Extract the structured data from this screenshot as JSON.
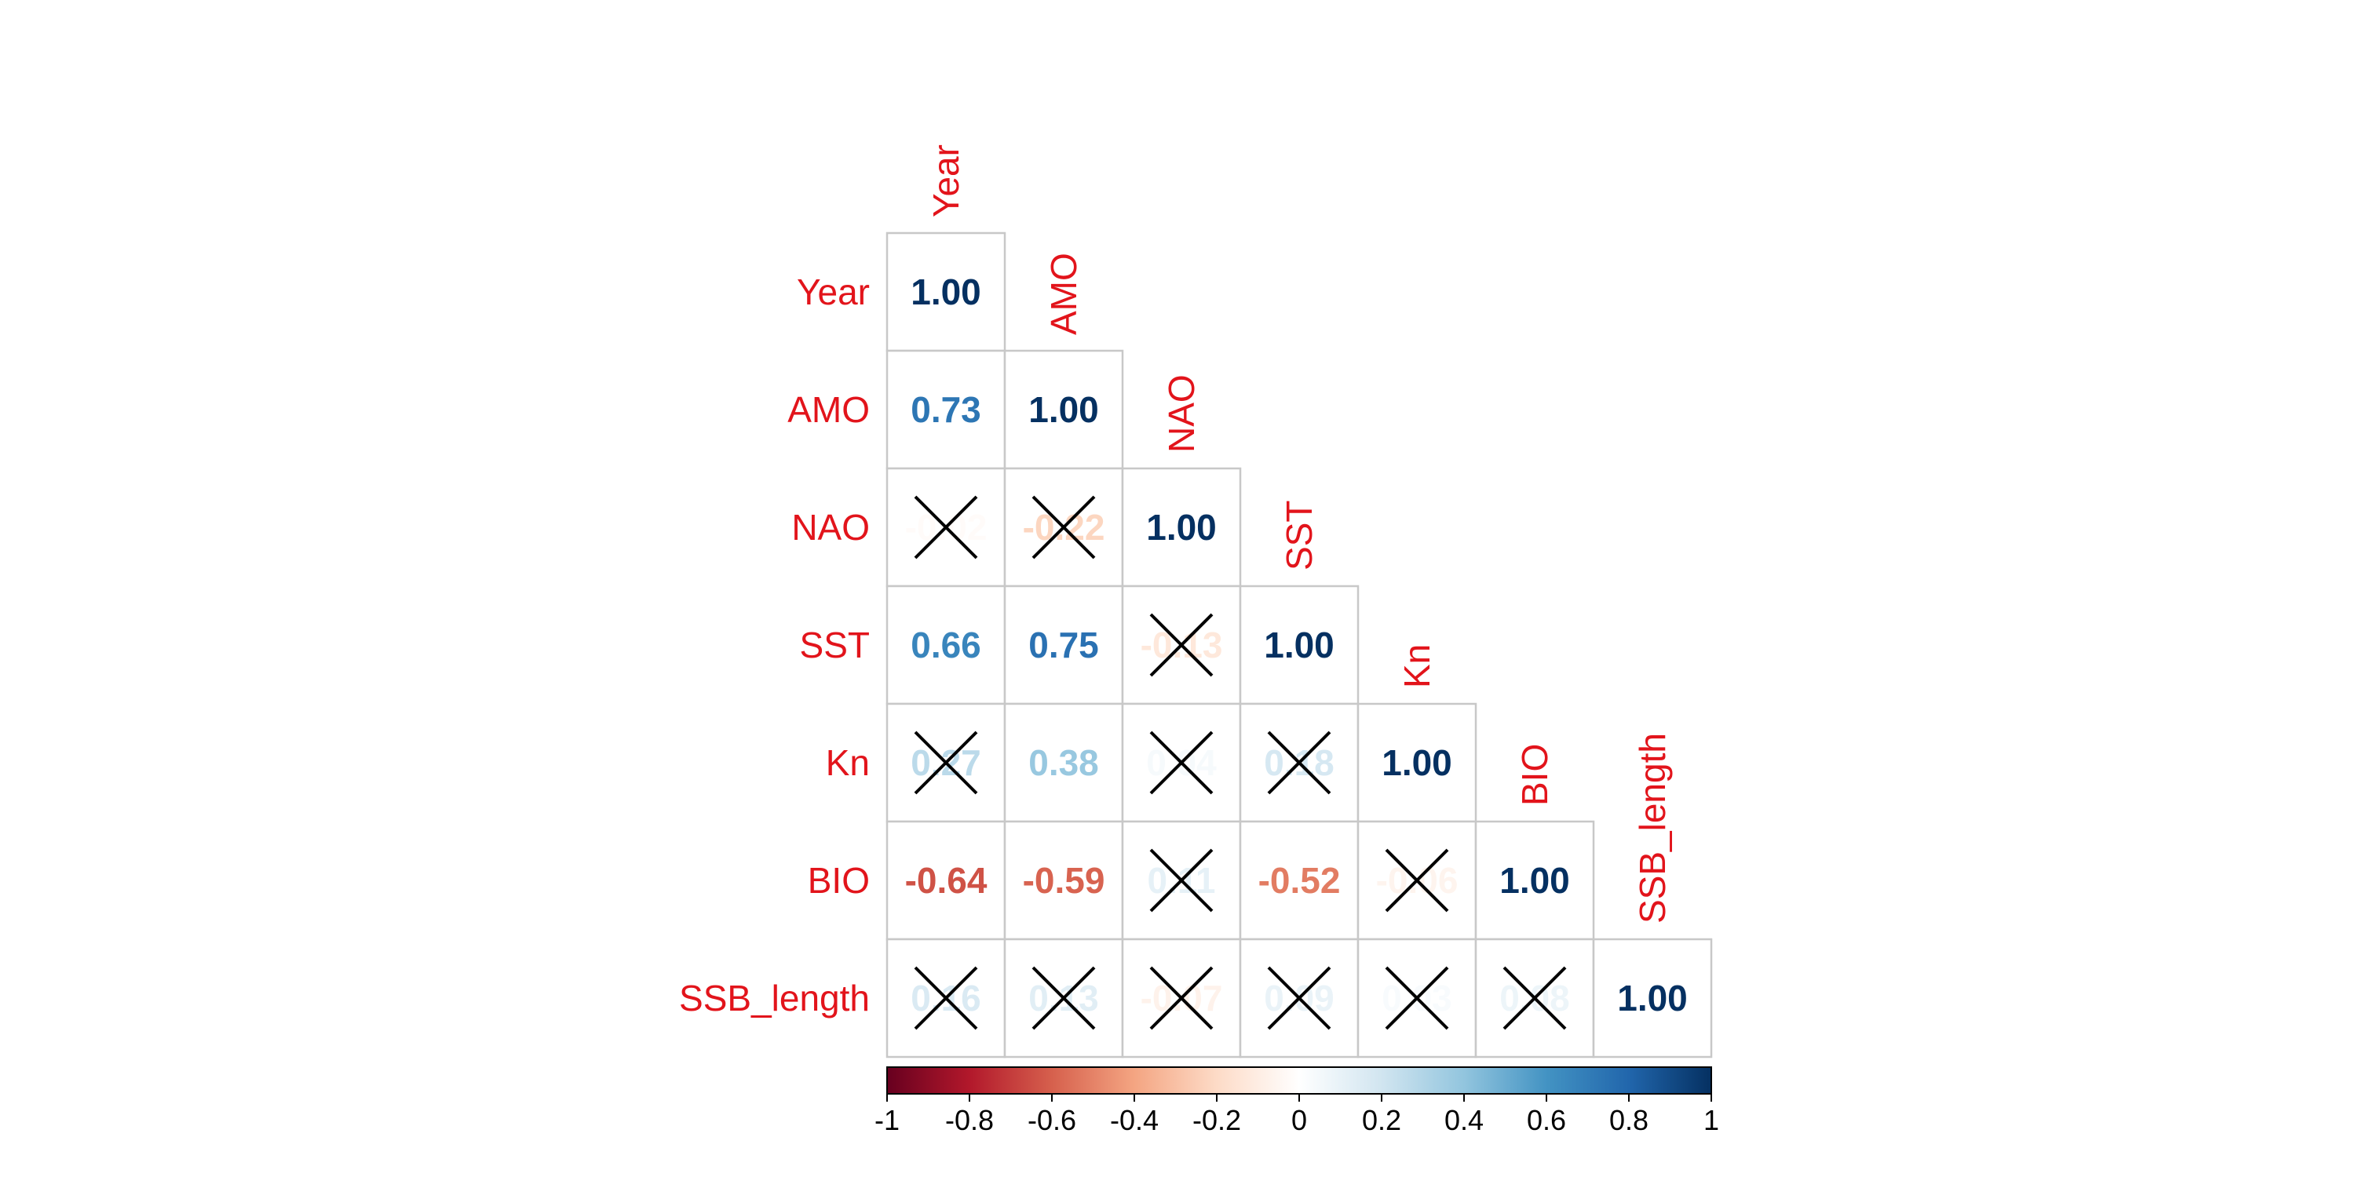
{
  "chart_data": {
    "type": "heatmap",
    "subtype": "correlation-matrix-lower-triangle",
    "variables": [
      "Year",
      "AMO",
      "NAO",
      "SST",
      "Kn",
      "BIO",
      "SSB_length"
    ],
    "cells": [
      {
        "row": 0,
        "col": 0,
        "value": 1.0,
        "label": "1.00",
        "crossed": false
      },
      {
        "row": 1,
        "col": 0,
        "value": 0.73,
        "label": "0.73",
        "crossed": false
      },
      {
        "row": 1,
        "col": 1,
        "value": 1.0,
        "label": "1.00",
        "crossed": false
      },
      {
        "row": 2,
        "col": 0,
        "value": -0.02,
        "label": "-0.02",
        "crossed": true
      },
      {
        "row": 2,
        "col": 1,
        "value": -0.22,
        "label": "-0.22",
        "crossed": true
      },
      {
        "row": 2,
        "col": 2,
        "value": 1.0,
        "label": "1.00",
        "crossed": false
      },
      {
        "row": 3,
        "col": 0,
        "value": 0.66,
        "label": "0.66",
        "crossed": false
      },
      {
        "row": 3,
        "col": 1,
        "value": 0.75,
        "label": "0.75",
        "crossed": false
      },
      {
        "row": 3,
        "col": 2,
        "value": -0.13,
        "label": "-0.13",
        "crossed": true
      },
      {
        "row": 3,
        "col": 3,
        "value": 1.0,
        "label": "1.00",
        "crossed": false
      },
      {
        "row": 4,
        "col": 0,
        "value": 0.27,
        "label": "0.27",
        "crossed": true
      },
      {
        "row": 4,
        "col": 1,
        "value": 0.38,
        "label": "0.38",
        "crossed": false
      },
      {
        "row": 4,
        "col": 2,
        "value": 0.04,
        "label": "0.04",
        "crossed": true
      },
      {
        "row": 4,
        "col": 3,
        "value": 0.18,
        "label": "0.18",
        "crossed": true
      },
      {
        "row": 4,
        "col": 4,
        "value": 1.0,
        "label": "1.00",
        "crossed": false
      },
      {
        "row": 5,
        "col": 0,
        "value": -0.64,
        "label": "-0.64",
        "crossed": false
      },
      {
        "row": 5,
        "col": 1,
        "value": -0.59,
        "label": "-0.59",
        "crossed": false
      },
      {
        "row": 5,
        "col": 2,
        "value": 0.11,
        "label": "0.11",
        "crossed": true
      },
      {
        "row": 5,
        "col": 3,
        "value": -0.52,
        "label": "-0.52",
        "crossed": false
      },
      {
        "row": 5,
        "col": 4,
        "value": -0.06,
        "label": "-0.06",
        "crossed": true
      },
      {
        "row": 5,
        "col": 5,
        "value": 1.0,
        "label": "1.00",
        "crossed": false
      },
      {
        "row": 6,
        "col": 0,
        "value": 0.16,
        "label": "0.16",
        "crossed": true
      },
      {
        "row": 6,
        "col": 1,
        "value": 0.13,
        "label": "0.13",
        "crossed": true
      },
      {
        "row": 6,
        "col": 2,
        "value": -0.07,
        "label": "-0.07",
        "crossed": true
      },
      {
        "row": 6,
        "col": 3,
        "value": 0.09,
        "label": "0.09",
        "crossed": true
      },
      {
        "row": 6,
        "col": 4,
        "value": 0.03,
        "label": "0.03",
        "crossed": true
      },
      {
        "row": 6,
        "col": 5,
        "value": 0.08,
        "label": "0.08",
        "crossed": true
      },
      {
        "row": 6,
        "col": 6,
        "value": 1.0,
        "label": "1.00",
        "crossed": false
      }
    ],
    "colorbar": {
      "range": [
        -1,
        1
      ],
      "ticks": [
        -1,
        -0.8,
        -0.6,
        -0.4,
        -0.2,
        0,
        0.2,
        0.4,
        0.6,
        0.8,
        1
      ],
      "tick_labels": [
        "-1",
        "-0.8",
        "-0.6",
        "-0.4",
        "-0.2",
        "0",
        "0.2",
        "0.4",
        "0.6",
        "0.8",
        "1"
      ],
      "colors": [
        "#67001F",
        "#B2182B",
        "#D6604D",
        "#F4A582",
        "#FDDBC7",
        "#FFFFFF",
        "#D1E5F0",
        "#92C5DE",
        "#4393C3",
        "#2166AC",
        "#053061"
      ],
      "placement": "bottom"
    },
    "label_color": "#E2141B",
    "grid_color": "#C8C8C8",
    "cross_color": "#000000"
  }
}
